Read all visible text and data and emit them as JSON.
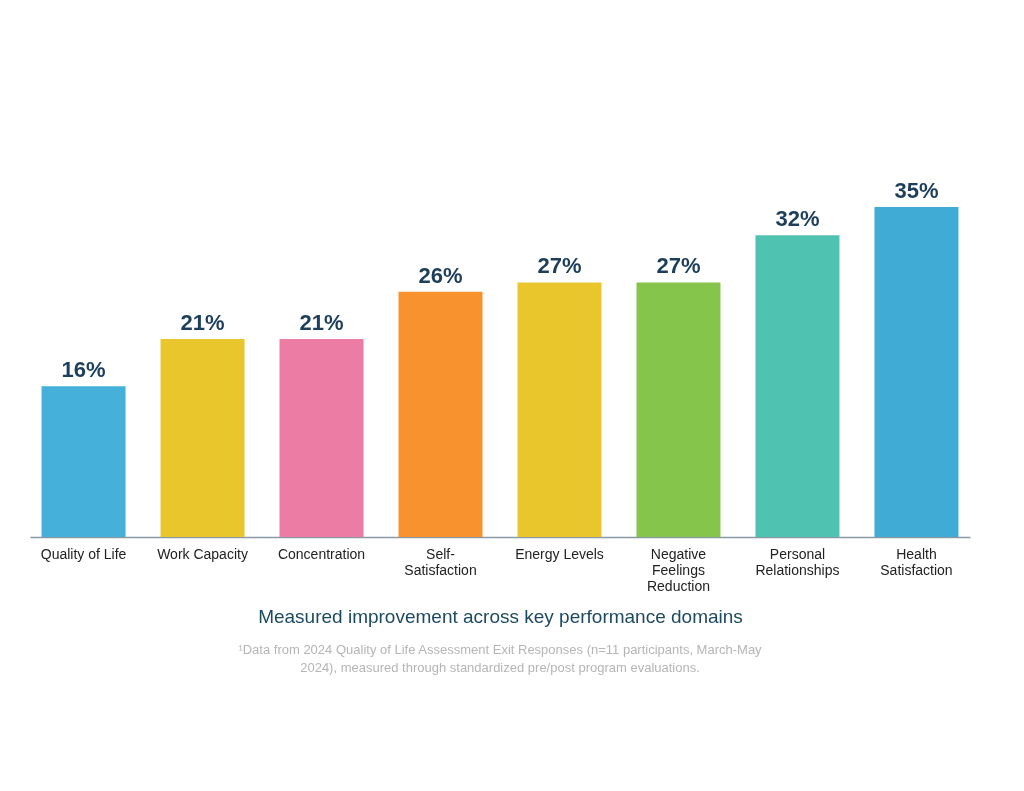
{
  "chart_data": {
    "type": "bar",
    "xlabel": "Measured improvement across key performance domains",
    "categories": [
      "Quality of Life",
      "Work Capacity",
      "Concentration",
      "Self-Satisfaction",
      "Energy Levels",
      "Negative Feelings Reduction",
      "Personal Relationships",
      "Health Satisfaction"
    ],
    "values": [
      16,
      21,
      21,
      26,
      27,
      27,
      32,
      35
    ],
    "value_labels": [
      "16%",
      "21%",
      "21%",
      "26%",
      "27%",
      "27%",
      "32%",
      "35%"
    ],
    "colors": [
      "#45b0d9",
      "#e9c62c",
      "#ec7ca4",
      "#f7922e",
      "#e9c62c",
      "#86c54b",
      "#50c2b1",
      "#40acd6"
    ],
    "annotations": [
      "¹Data from 2024 Quality of Life Assessment Exit Responses (n=11 participants, March-May 2024), measured through standardized pre/post program evaluations."
    ],
    "legend": false
  }
}
